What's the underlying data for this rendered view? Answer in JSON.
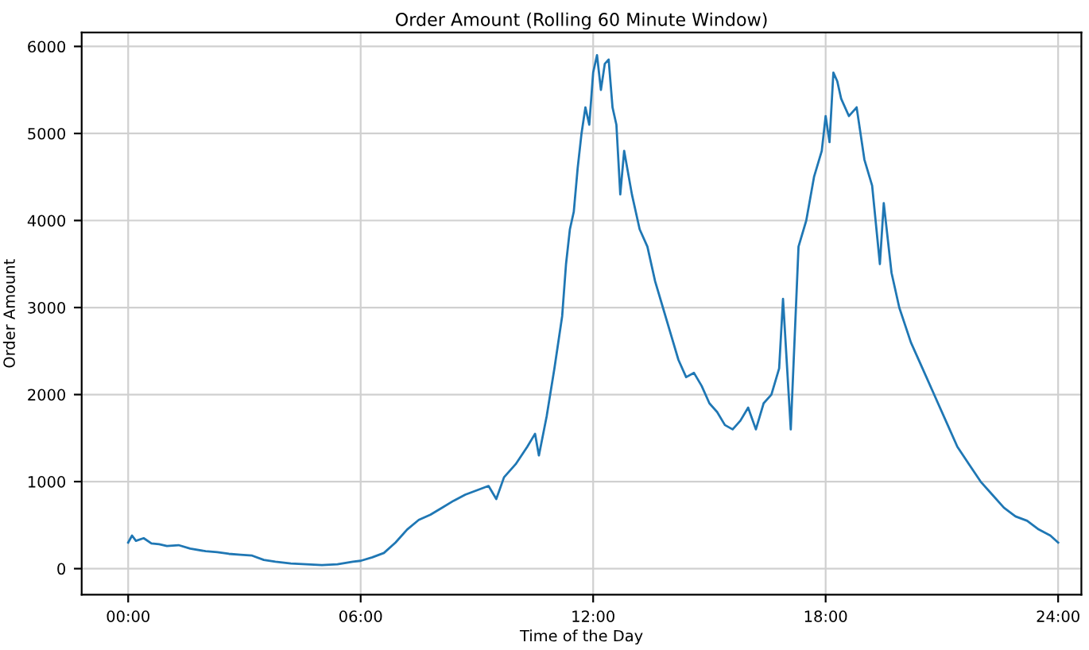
{
  "chart_data": {
    "type": "line",
    "title": "Order Amount (Rolling 60 Minute Window)",
    "xlabel": "Time of the Day",
    "ylabel": "Order Amount",
    "series": [
      {
        "color": "#1f77b4",
        "x": [
          0,
          0.1,
          0.2,
          0.4,
          0.6,
          0.8,
          1.0,
          1.3,
          1.6,
          2.0,
          2.3,
          2.6,
          2.9,
          3.2,
          3.5,
          3.8,
          4.2,
          4.6,
          5.0,
          5.4,
          5.8,
          6.0,
          6.3,
          6.6,
          6.9,
          7.2,
          7.5,
          7.8,
          8.1,
          8.4,
          8.7,
          9.0,
          9.3,
          9.5,
          9.7,
          10.0,
          10.3,
          10.5,
          10.6,
          10.8,
          11.0,
          11.2,
          11.3,
          11.4,
          11.5,
          11.6,
          11.7,
          11.8,
          11.9,
          12.0,
          12.1,
          12.2,
          12.3,
          12.4,
          12.5,
          12.6,
          12.7,
          12.8,
          13.0,
          13.2,
          13.4,
          13.6,
          13.8,
          14.0,
          14.2,
          14.4,
          14.6,
          14.8,
          15.0,
          15.2,
          15.4,
          15.6,
          15.8,
          16.0,
          16.2,
          16.4,
          16.6,
          16.8,
          16.9,
          17.1,
          17.3,
          17.5,
          17.7,
          17.9,
          18.0,
          18.1,
          18.2,
          18.3,
          18.4,
          18.6,
          18.8,
          19.0,
          19.2,
          19.4,
          19.5,
          19.7,
          19.9,
          20.2,
          20.5,
          20.8,
          21.1,
          21.4,
          21.7,
          22.0,
          22.3,
          22.6,
          22.9,
          23.2,
          23.5,
          23.8,
          24.0
        ],
        "values": [
          300,
          380,
          320,
          350,
          290,
          280,
          260,
          270,
          230,
          200,
          190,
          170,
          160,
          150,
          100,
          80,
          60,
          50,
          40,
          50,
          80,
          90,
          130,
          180,
          300,
          450,
          560,
          620,
          700,
          780,
          850,
          900,
          950,
          800,
          1050,
          1200,
          1400,
          1550,
          1300,
          1750,
          2300,
          2900,
          3500,
          3900,
          4100,
          4600,
          5000,
          5300,
          5100,
          5700,
          5900,
          5500,
          5800,
          5850,
          5300,
          5100,
          4300,
          4800,
          4300,
          3900,
          3700,
          3300,
          3000,
          2700,
          2400,
          2200,
          2250,
          2100,
          1900,
          1800,
          1650,
          1600,
          1700,
          1850,
          1600,
          1900,
          2000,
          2300,
          3100,
          1600,
          3700,
          4000,
          4500,
          4800,
          5200,
          4900,
          5700,
          5600,
          5400,
          5200,
          5300,
          4700,
          4400,
          3500,
          4200,
          3400,
          3000,
          2600,
          2300,
          2000,
          1700,
          1400,
          1200,
          1000,
          850,
          700,
          600,
          550,
          450,
          380,
          300
        ]
      }
    ],
    "xlim": [
      -1.2,
      24.6
    ],
    "ylim": [
      -300,
      6160
    ],
    "xticks": [
      {
        "value": 0,
        "label": "00:00"
      },
      {
        "value": 6,
        "label": "06:00"
      },
      {
        "value": 12,
        "label": "12:00"
      },
      {
        "value": 18,
        "label": "18:00"
      },
      {
        "value": 24,
        "label": "24:00"
      }
    ],
    "yticks": [
      0,
      1000,
      2000,
      3000,
      4000,
      5000,
      6000
    ],
    "grid": true,
    "marker": "none",
    "line_style": "solid"
  }
}
